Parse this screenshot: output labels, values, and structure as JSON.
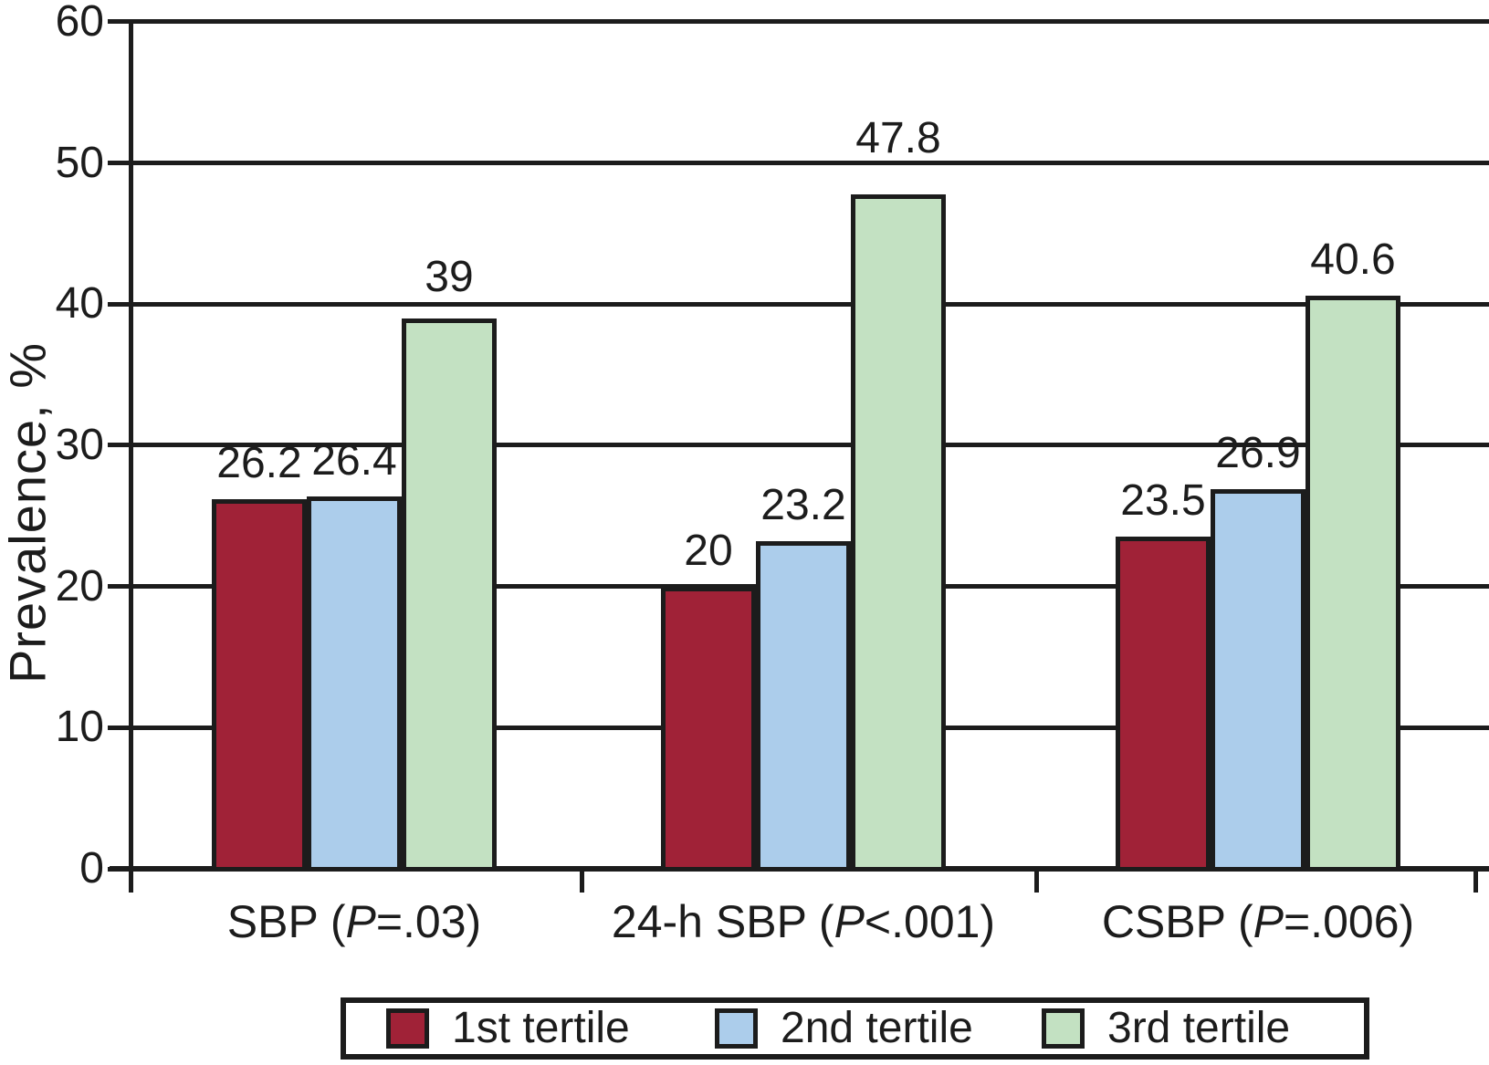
{
  "chart_data": {
    "type": "bar",
    "title": "",
    "xlabel": "",
    "ylabel": "Prevalence, %",
    "ylim": [
      0,
      60
    ],
    "yticks": [
      0,
      10,
      20,
      30,
      40,
      50,
      60
    ],
    "grid": true,
    "legend_position": "bottom",
    "line_color": "#1c1c1c",
    "categories": [
      {
        "label": "SBP (P=.03)",
        "parts": {
          "pre": "SBP (",
          "italic": "P",
          "post": "=.03)"
        }
      },
      {
        "label": "24-h SBP (P<.001)",
        "parts": {
          "pre": "24-h SBP (",
          "italic": "P",
          "post": "<.001)"
        }
      },
      {
        "label": "CSBP (P=.006)",
        "parts": {
          "pre": "CSBP (",
          "italic": "P",
          "post": "=.006)"
        }
      }
    ],
    "series": [
      {
        "name": "1st tertile",
        "color": "#a02237",
        "values": [
          26.2,
          20,
          23.5
        ]
      },
      {
        "name": "2nd tertile",
        "color": "#accdeb",
        "values": [
          26.4,
          23.2,
          26.9
        ]
      },
      {
        "name": "3rd tertile",
        "color": "#c3e1c2",
        "values": [
          39,
          47.8,
          40.6
        ]
      }
    ],
    "value_labels": [
      [
        "26.2",
        "26.4",
        "39"
      ],
      [
        "20",
        "23.2",
        "47.8"
      ],
      [
        "23.5",
        "26.9",
        "40.6"
      ]
    ],
    "layout": {
      "label_gaps": [
        [
          16,
          16,
          22
        ],
        [
          16,
          16,
          38
        ],
        [
          16,
          16,
          16
        ]
      ]
    }
  }
}
